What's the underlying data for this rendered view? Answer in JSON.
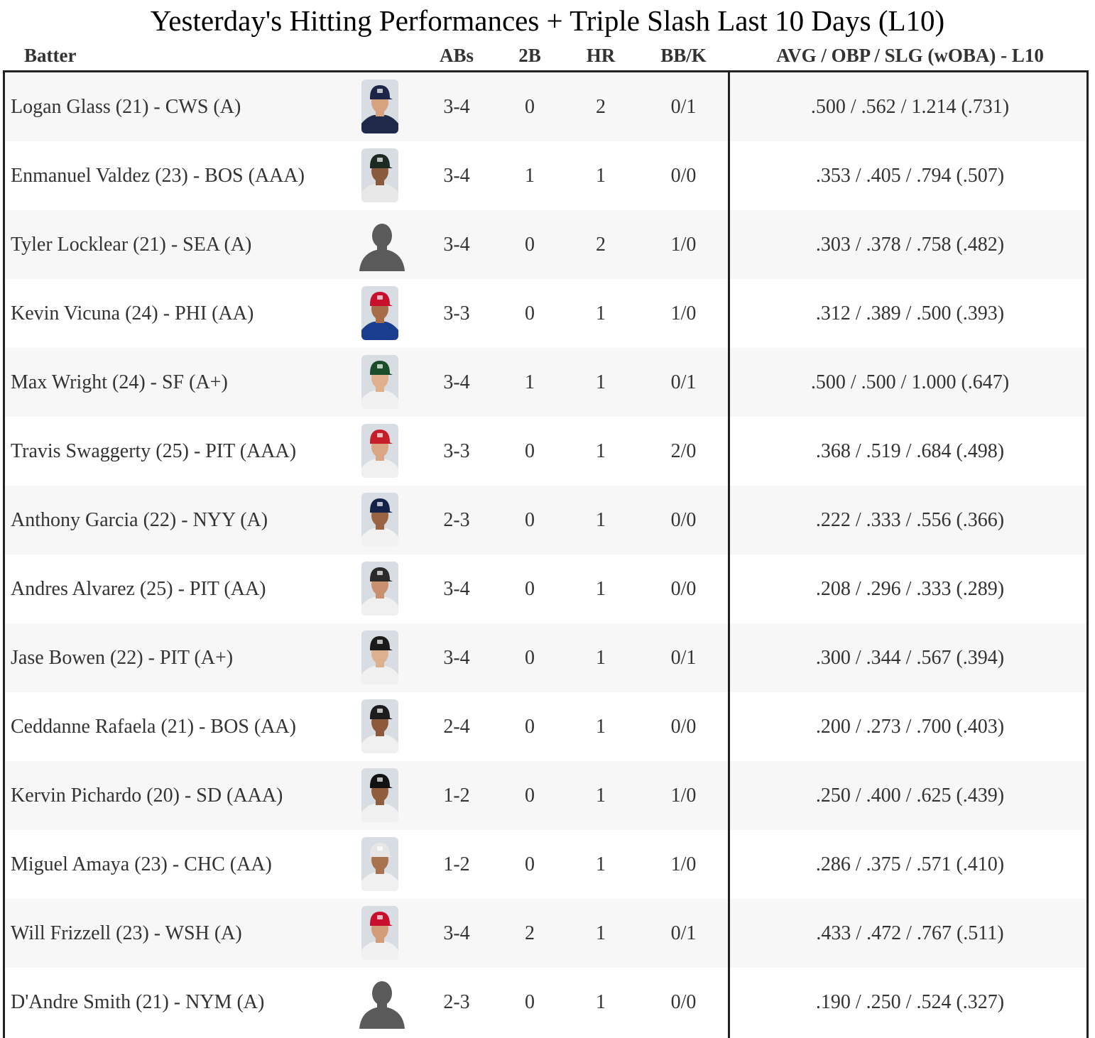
{
  "title": "Yesterday's Hitting Performances + Triple Slash Last 10 Days (L10)",
  "headers": {
    "batter": "Batter",
    "abs": "ABs",
    "doubles": "2B",
    "hr": "HR",
    "bbk": "BB/K",
    "slash": "AVG / OBP / SLG (wOBA) - L10"
  },
  "rows": [
    {
      "batter": "Logan Glass (21) - CWS (A)",
      "photo": "player-photo",
      "jersey": "#1f2a4a",
      "cap": "#1c2447",
      "skin": "#d7a37e",
      "abs": "3-4",
      "doubles": "0",
      "hr": "2",
      "bbk": "0/1",
      "slash": ".500 / .562 / 1.214 (.731)"
    },
    {
      "batter": "Enmanuel Valdez (23) - BOS (AAA)",
      "photo": "player-photo",
      "jersey": "#e8e8e8",
      "cap": "#1d2a22",
      "skin": "#8a5a3c",
      "abs": "3-4",
      "doubles": "1",
      "hr": "1",
      "bbk": "0/0",
      "slash": ".353 / .405 / .794 (.507)"
    },
    {
      "batter": "Tyler Locklear (21) - SEA (A)",
      "photo": "silhouette",
      "jersey": "",
      "cap": "",
      "skin": "",
      "abs": "3-4",
      "doubles": "0",
      "hr": "2",
      "bbk": "1/0",
      "slash": ".303 / .378 / .758 (.482)"
    },
    {
      "batter": "Kevin Vicuna (24) - PHI (AA)",
      "photo": "player-photo",
      "jersey": "#1b3d8f",
      "cap": "#c8102e",
      "skin": "#a86c48",
      "abs": "3-3",
      "doubles": "0",
      "hr": "1",
      "bbk": "1/0",
      "slash": ".312 / .389 / .500 (.393)"
    },
    {
      "batter": "Max Wright (24) - SF (A+)",
      "photo": "player-photo",
      "jersey": "#f0f0f0",
      "cap": "#1a4d2a",
      "skin": "#e0b08c",
      "abs": "3-4",
      "doubles": "1",
      "hr": "1",
      "bbk": "0/1",
      "slash": ".500 / .500 / 1.000 (.647)"
    },
    {
      "batter": "Travis Swaggerty (25) - PIT (AAA)",
      "photo": "player-photo",
      "jersey": "#f0f0f0",
      "cap": "#c41e2a",
      "skin": "#d9a583",
      "abs": "3-3",
      "doubles": "0",
      "hr": "1",
      "bbk": "2/0",
      "slash": ".368 / .519 / .684 (.498)"
    },
    {
      "batter": "Anthony Garcia (22) - NYY (A)",
      "photo": "player-photo",
      "jersey": "#f2f2f2",
      "cap": "#14224a",
      "skin": "#9a6443",
      "abs": "2-3",
      "doubles": "0",
      "hr": "1",
      "bbk": "0/0",
      "slash": ".222 / .333 / .556 (.366)"
    },
    {
      "batter": "Andres Alvarez (25) - PIT (AA)",
      "photo": "player-photo",
      "jersey": "#f0f0f0",
      "cap": "#2a2a2a",
      "skin": "#c99070",
      "abs": "3-4",
      "doubles": "0",
      "hr": "1",
      "bbk": "0/0",
      "slash": ".208 / .296 / .333 (.289)"
    },
    {
      "batter": "Jase Bowen (22) - PIT (A+)",
      "photo": "player-photo",
      "jersey": "#f0f0f0",
      "cap": "#1a1a1a",
      "skin": "#ddb08f",
      "abs": "3-4",
      "doubles": "0",
      "hr": "1",
      "bbk": "0/1",
      "slash": ".300 / .344 / .567 (.394)"
    },
    {
      "batter": "Ceddanne Rafaela (21) - BOS (AA)",
      "photo": "player-photo",
      "jersey": "#f0f0f0",
      "cap": "#1c1c1c",
      "skin": "#8c5a3a",
      "abs": "2-4",
      "doubles": "0",
      "hr": "1",
      "bbk": "0/0",
      "slash": ".200 / .273 / .700 (.403)"
    },
    {
      "batter": "Kervin Pichardo (20) - SD (AAA)",
      "photo": "player-photo",
      "jersey": "#f0f0f0",
      "cap": "#121212",
      "skin": "#8f5d3e",
      "abs": "1-2",
      "doubles": "0",
      "hr": "1",
      "bbk": "1/0",
      "slash": ".250 / .400 / .625 (.439)"
    },
    {
      "batter": "Miguel Amaya (23) - CHC (AA)",
      "photo": "player-photo",
      "jersey": "#f0f0f0",
      "cap": "#e6e6e6",
      "skin": "#a8724e",
      "abs": "1-2",
      "doubles": "0",
      "hr": "1",
      "bbk": "1/0",
      "slash": ".286 / .375 / .571 (.410)"
    },
    {
      "batter": "Will Frizzell (23) - WSH (A)",
      "photo": "player-photo",
      "jersey": "#f0f0f0",
      "cap": "#c8102e",
      "skin": "#d29c78",
      "abs": "3-4",
      "doubles": "2",
      "hr": "1",
      "bbk": "0/1",
      "slash": ".433 / .472 / .767 (.511)"
    },
    {
      "batter": "D'Andre Smith (21) - NYM (A)",
      "photo": "silhouette",
      "jersey": "",
      "cap": "",
      "skin": "",
      "abs": "2-3",
      "doubles": "0",
      "hr": "1",
      "bbk": "0/0",
      "slash": ".190 / .250 / .524 (.327)"
    }
  ]
}
